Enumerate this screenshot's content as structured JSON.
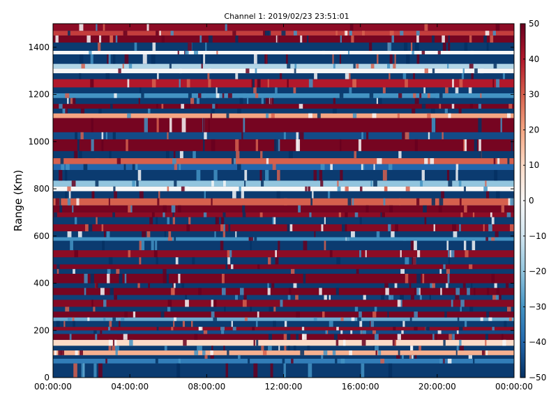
{
  "chart_data": {
    "type": "heatmap",
    "title": "Channel 1: 2019/02/23 23:51:01",
    "xlabel": "",
    "ylabel": "Range (Km)",
    "x_ticks": [
      "00:00:00",
      "04:00:00",
      "08:00:00",
      "12:00:00",
      "16:00:00",
      "20:00:00",
      "00:00:00"
    ],
    "y_ticks": [
      0,
      200,
      400,
      600,
      800,
      1000,
      1200,
      1400
    ],
    "ylim": [
      0,
      1500
    ],
    "colorbar": {
      "colormap": "RdBu_r",
      "range": [
        -50,
        50
      ],
      "ticks": [
        "50",
        "40",
        "30",
        "20",
        "10",
        "0",
        "−10",
        "−20",
        "−30",
        "−40",
        "−50"
      ]
    },
    "grid": false,
    "range_bands_km": [
      {
        "from": 0,
        "to": 60,
        "value": -48
      },
      {
        "from": 60,
        "to": 80,
        "value": -35
      },
      {
        "from": 80,
        "to": 95,
        "value": -48
      },
      {
        "from": 95,
        "to": 115,
        "value": 18
      },
      {
        "from": 115,
        "to": 135,
        "value": -48
      },
      {
        "from": 135,
        "to": 160,
        "value": 10
      },
      {
        "from": 160,
        "to": 185,
        "value": 48
      },
      {
        "from": 185,
        "to": 200,
        "value": -45
      },
      {
        "from": 200,
        "to": 215,
        "value": 45
      },
      {
        "from": 215,
        "to": 240,
        "value": -48
      },
      {
        "from": 240,
        "to": 255,
        "value": -25
      },
      {
        "from": 255,
        "to": 280,
        "value": 48
      },
      {
        "from": 280,
        "to": 300,
        "value": -48
      },
      {
        "from": 300,
        "to": 330,
        "value": 46
      },
      {
        "from": 330,
        "to": 350,
        "value": -47
      },
      {
        "from": 350,
        "to": 380,
        "value": 48
      },
      {
        "from": 380,
        "to": 400,
        "value": -48
      },
      {
        "from": 400,
        "to": 440,
        "value": 48
      },
      {
        "from": 440,
        "to": 460,
        "value": -48
      },
      {
        "from": 460,
        "to": 480,
        "value": 47
      },
      {
        "from": 480,
        "to": 510,
        "value": -48
      },
      {
        "from": 510,
        "to": 540,
        "value": 45
      },
      {
        "from": 540,
        "to": 580,
        "value": -48
      },
      {
        "from": 580,
        "to": 595,
        "value": -30
      },
      {
        "from": 595,
        "to": 620,
        "value": -48
      },
      {
        "from": 620,
        "to": 650,
        "value": 46
      },
      {
        "from": 650,
        "to": 680,
        "value": -48
      },
      {
        "from": 680,
        "to": 700,
        "value": 45
      },
      {
        "from": 700,
        "to": 730,
        "value": 48
      },
      {
        "from": 730,
        "to": 760,
        "value": 30
      },
      {
        "from": 760,
        "to": 790,
        "value": -48
      },
      {
        "from": 790,
        "to": 810,
        "value": 0
      },
      {
        "from": 810,
        "to": 835,
        "value": -20
      },
      {
        "from": 835,
        "to": 880,
        "value": -48
      },
      {
        "from": 880,
        "to": 905,
        "value": -40
      },
      {
        "from": 905,
        "to": 930,
        "value": 30
      },
      {
        "from": 930,
        "to": 960,
        "value": -48
      },
      {
        "from": 960,
        "to": 1010,
        "value": 48
      },
      {
        "from": 1010,
        "to": 1040,
        "value": -45
      },
      {
        "from": 1040,
        "to": 1100,
        "value": 48
      },
      {
        "from": 1100,
        "to": 1120,
        "value": 20
      },
      {
        "from": 1120,
        "to": 1140,
        "value": -48
      },
      {
        "from": 1140,
        "to": 1160,
        "value": 48
      },
      {
        "from": 1160,
        "to": 1185,
        "value": -48
      },
      {
        "from": 1185,
        "to": 1205,
        "value": -30
      },
      {
        "from": 1205,
        "to": 1230,
        "value": -48
      },
      {
        "from": 1230,
        "to": 1265,
        "value": 40
      },
      {
        "from": 1265,
        "to": 1290,
        "value": -48
      },
      {
        "from": 1290,
        "to": 1310,
        "value": 0
      },
      {
        "from": 1310,
        "to": 1330,
        "value": -15
      },
      {
        "from": 1330,
        "to": 1370,
        "value": -48
      },
      {
        "from": 1370,
        "to": 1385,
        "value": 0
      },
      {
        "from": 1385,
        "to": 1420,
        "value": -48
      },
      {
        "from": 1420,
        "to": 1450,
        "value": 48
      },
      {
        "from": 1450,
        "to": 1470,
        "value": 35
      },
      {
        "from": 1470,
        "to": 1500,
        "value": 45
      }
    ]
  }
}
